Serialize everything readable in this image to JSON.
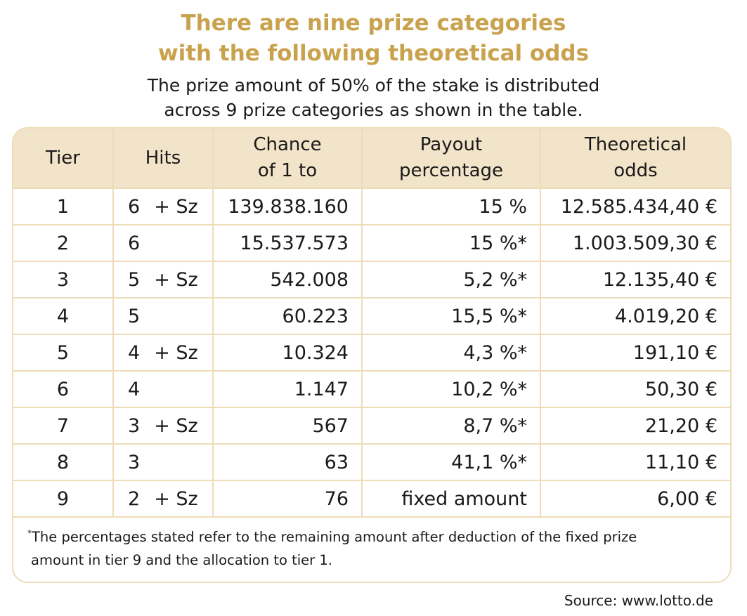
{
  "title": {
    "line1": "There are nine prize categories",
    "line2": "with the following theoretical odds"
  },
  "subtitle": {
    "line1": "The prize amount of 50% of the stake is distributed",
    "line2": "across 9 prize categories as shown in the table."
  },
  "table": {
    "headers": {
      "tier": "Tier",
      "hits": "Hits",
      "chance_line1": "Chance",
      "chance_line2": "of 1 to",
      "payout_line1": "Payout",
      "payout_line2": "percentage",
      "odds_line1": "Theoretical",
      "odds_line2": "odds"
    },
    "rows": [
      {
        "tier": "1",
        "hits": "6",
        "sz": "+ Sz",
        "chance": "139.838.160",
        "payout": "15 %",
        "odds": "12.585.434,40 €"
      },
      {
        "tier": "2",
        "hits": "6",
        "sz": "",
        "chance": "15.537.573",
        "payout": "15 %*",
        "odds": "1.003.509,30 €"
      },
      {
        "tier": "3",
        "hits": "5",
        "sz": "+ Sz",
        "chance": "542.008",
        "payout": "5,2 %*",
        "odds": "12.135,40 €"
      },
      {
        "tier": "4",
        "hits": "5",
        "sz": "",
        "chance": "60.223",
        "payout": "15,5 %*",
        "odds": "4.019,20 €"
      },
      {
        "tier": "5",
        "hits": "4",
        "sz": "+ Sz",
        "chance": "10.324",
        "payout": "4,3 %*",
        "odds": "191,10 €"
      },
      {
        "tier": "6",
        "hits": "4",
        "sz": "",
        "chance": "1.147",
        "payout": "10,2 %*",
        "odds": "50,30 €"
      },
      {
        "tier": "7",
        "hits": "3",
        "sz": "+ Sz",
        "chance": "567",
        "payout": "8,7 %*",
        "odds": "21,20 €"
      },
      {
        "tier": "8",
        "hits": "3",
        "sz": "",
        "chance": "63",
        "payout": "41,1 %*",
        "odds": "11,10 €"
      },
      {
        "tier": "9",
        "hits": "2",
        "sz": "+ Sz",
        "chance": "76",
        "payout": "fixed amount",
        "odds": "6,00 €"
      }
    ]
  },
  "footnote": {
    "marker": "*",
    "line1": "The percentages stated refer to the remaining amount after deduction of the fixed prize",
    "line2": "amount in tier 9 and the allocation to tier 1."
  },
  "source": "Source: www.lotto.de",
  "colors": {
    "title": "#c9a24e",
    "header_bg": "#f2e4c8",
    "border": "#eedcb8"
  }
}
